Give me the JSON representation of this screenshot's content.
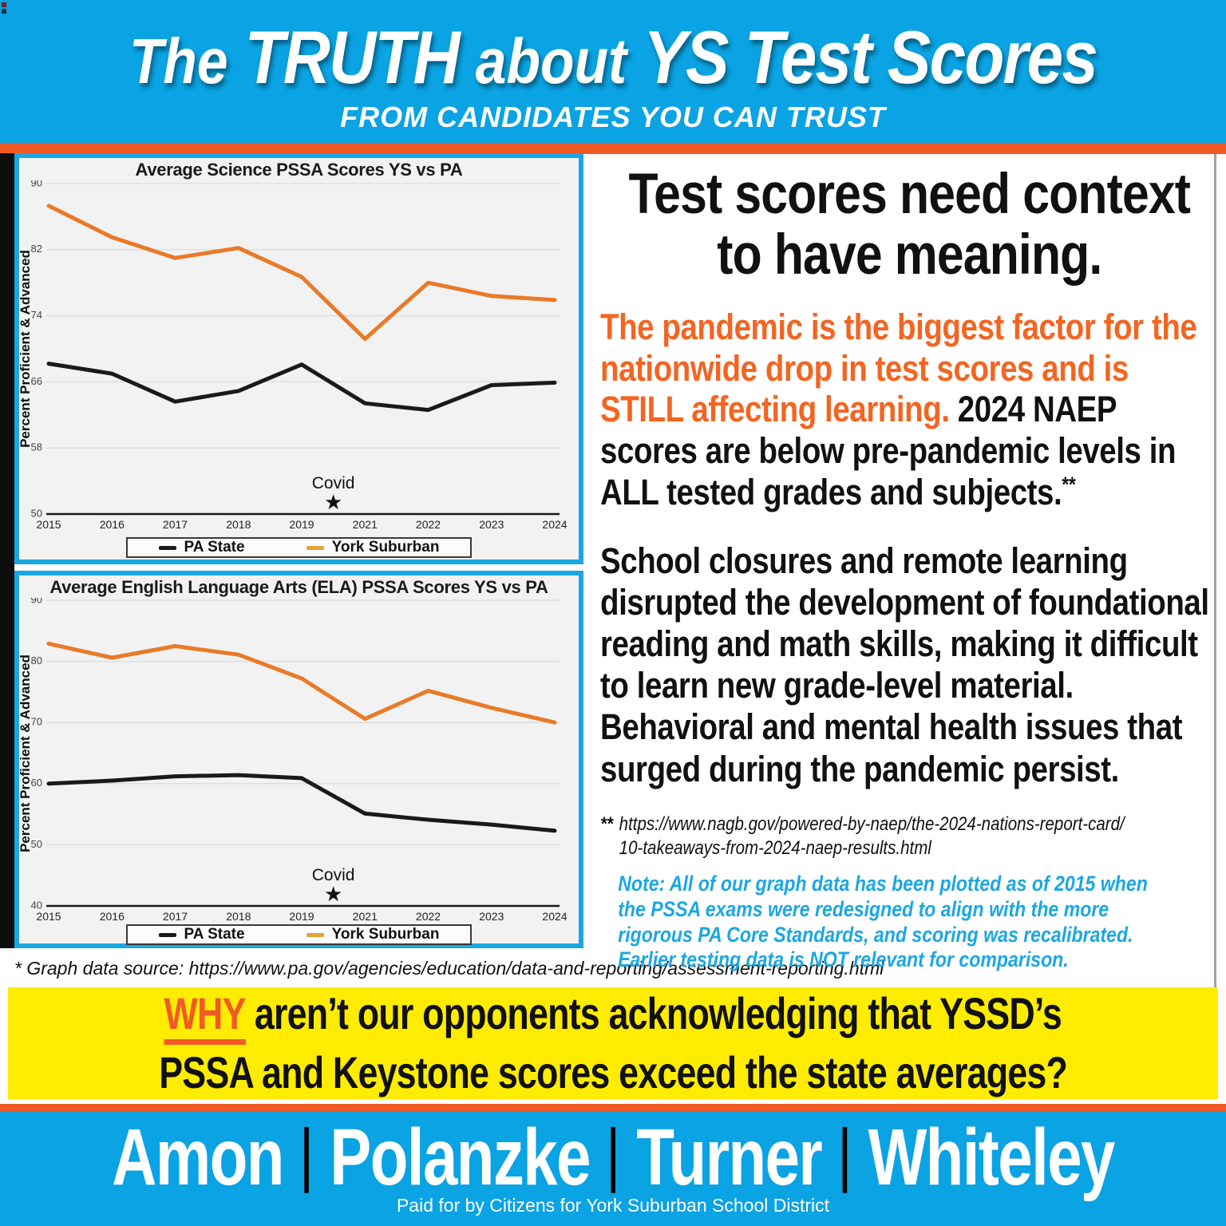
{
  "header": {
    "title_the": "The",
    "title_truth": "TRUTH",
    "title_about": "about",
    "title_rest": "YS Test Scores",
    "subtitle": "FROM CANDIDATES YOU CAN TRUST"
  },
  "colors": {
    "blue": "#0aa3e3",
    "orange_accent": "#F15A24",
    "orange_text": "#F26522",
    "yellow": "#ffec00",
    "chart_background": "#f2f2f2",
    "pa_state_line": "#1a1a1a",
    "york_suburban_line": "#E87A28",
    "york_suburban_legend_dash": "#E3A33C",
    "note_blue": "#1ba7e2"
  },
  "chart_data": [
    {
      "type": "line",
      "title": "Average Science PSSA Scores YS vs PA",
      "ylabel": "Percent Proficient & Advanced",
      "xlabel": "",
      "categories": [
        "2015",
        "2016",
        "2017",
        "2018",
        "2019",
        "2021",
        "2022",
        "2023",
        "2024"
      ],
      "yticks": [
        90,
        82,
        74,
        66,
        58,
        50
      ],
      "ylim": [
        50,
        90
      ],
      "grid": true,
      "legend_position": "bottom",
      "annotation": {
        "label": "Covid",
        "symbol": "★",
        "x_between": [
          "2019",
          "2021"
        ]
      },
      "series": [
        {
          "name": "PA State",
          "color": "#1a1a1a",
          "legend_color": "#1a1a1a",
          "values": [
            68.2,
            67.0,
            63.6,
            64.9,
            68.1,
            63.4,
            62.6,
            65.6,
            65.9
          ]
        },
        {
          "name": "York Suburban",
          "color": "#E87A28",
          "legend_color": "#E3A33C",
          "values": [
            87.3,
            83.5,
            81.0,
            82.2,
            78.7,
            71.2,
            78.0,
            76.4,
            75.9
          ]
        }
      ]
    },
    {
      "type": "line",
      "title": "Average English Language Arts (ELA) PSSA Scores YS vs PA",
      "ylabel": "Percent Proficient & Advanced",
      "xlabel": "",
      "categories": [
        "2015",
        "2016",
        "2017",
        "2018",
        "2019",
        "2021",
        "2022",
        "2023",
        "2024"
      ],
      "yticks": [
        90,
        80,
        70,
        60,
        50,
        40
      ],
      "ylim": [
        40,
        90
      ],
      "grid": true,
      "legend_position": "bottom",
      "annotation": {
        "label": "Covid",
        "symbol": "★",
        "x_between": [
          "2019",
          "2021"
        ]
      },
      "series": [
        {
          "name": "PA State",
          "color": "#1a1a1a",
          "legend_color": "#1a1a1a",
          "values": [
            60.0,
            60.5,
            61.2,
            61.4,
            60.9,
            55.1,
            54.1,
            53.3,
            52.3
          ]
        },
        {
          "name": "York Suburban",
          "color": "#E87A28",
          "legend_color": "#E3A33C",
          "values": [
            82.9,
            80.6,
            82.5,
            81.1,
            77.2,
            70.6,
            75.2,
            72.4,
            70.0
          ]
        }
      ]
    }
  ],
  "source_note": "* Graph data source: https://www.pa.gov/agencies/education/data-and-reporting/assessment-reporting.html",
  "right_panel": {
    "heading_line1": "Test scores need context",
    "heading_line2": "to have meaning.",
    "para1_orange": "The pandemic is the biggest factor for the nationwide drop in test scores and is STILL affecting learning.",
    "para1_black": " 2024 NAEP scores are below pre-pandemic levels in ALL tested grades and subjects.",
    "para1_sup": "**",
    "para2": "School closures and remote learning disrupted the development of foundational reading and math skills, making it difficult to learn new grade-level material. Behavioral and mental health issues that surged during the pandemic persist.",
    "footnote_marker": "**",
    "footnote_url_line1": "https://www.nagb.gov/powered-by-naep/the-2024-nations-report-card/",
    "footnote_url_line2": "10-takeaways-from-2024-naep-results.html",
    "note_label": "Note:",
    "note_text": " All of our graph data has been plotted as of 2015 when the PSSA exams were redesigned to align with the more rigorous PA Core Standards, and scoring was recalibrated. Earlier testing data is NOT relevant for comparison."
  },
  "banner": {
    "why": "WHY",
    "line1_rest": "aren’t our opponents acknowledging that YSSD’s",
    "line2": "PSSA and Keystone scores exceed the state averages?"
  },
  "footer": {
    "names": [
      "Amon",
      "Polanzke",
      "Turner",
      "Whiteley"
    ],
    "separator": "|",
    "paid_for": "Paid for by Citizens for York Suburban School District"
  }
}
